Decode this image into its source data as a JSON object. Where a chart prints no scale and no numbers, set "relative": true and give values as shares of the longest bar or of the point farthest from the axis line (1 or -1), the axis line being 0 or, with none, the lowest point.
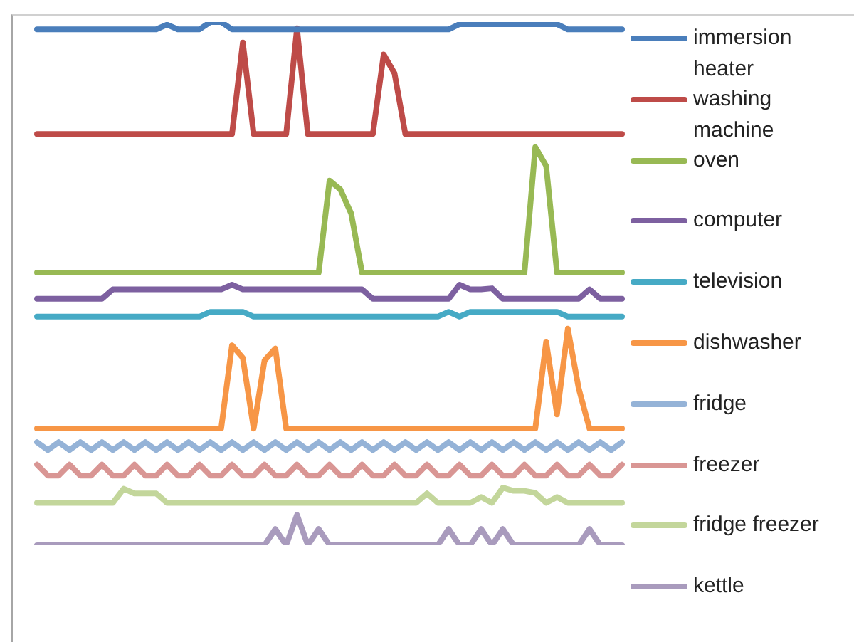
{
  "chart_data": {
    "type": "line",
    "relative": true,
    "legend": "right",
    "marker": "none",
    "line_style": "solid",
    "categories": [
      null,
      null,
      null,
      null,
      null,
      null,
      null,
      null,
      null,
      null,
      null,
      null,
      null,
      null,
      null,
      null,
      null,
      null,
      null,
      null,
      null,
      null,
      null,
      null,
      null,
      null,
      null,
      null,
      null,
      null,
      null,
      null,
      null,
      null,
      null,
      null,
      null,
      null,
      null,
      null,
      null,
      null,
      null,
      null,
      null,
      null,
      null,
      null,
      null,
      null,
      null,
      null,
      null,
      null,
      null
    ],
    "series": [
      {
        "name": "immersion heater",
        "color": "#4a7ebb",
        "values": [
          0.986,
          0.986,
          0.986,
          0.986,
          0.986,
          0.986,
          0.986,
          0.986,
          0.986,
          0.986,
          0.986,
          0.986,
          0.995,
          0.986,
          0.986,
          0.986,
          1,
          1,
          0.986,
          0.986,
          0.986,
          0.986,
          0.986,
          0.986,
          0.986,
          0.986,
          0.986,
          0.986,
          0.986,
          0.986,
          0.986,
          0.986,
          0.986,
          0.986,
          0.986,
          0.986,
          0.986,
          0.986,
          0.986,
          0.996,
          0.996,
          0.996,
          0.996,
          0.996,
          0.996,
          0.996,
          0.996,
          0.996,
          0.996,
          0.986,
          0.986,
          0.986,
          0.986,
          0.986,
          0.986
        ]
      },
      {
        "name": "washing machine",
        "color": "#be4b48",
        "values": [
          0.786,
          0.786,
          0.786,
          0.786,
          0.786,
          0.786,
          0.786,
          0.786,
          0.786,
          0.786,
          0.786,
          0.786,
          0.786,
          0.786,
          0.786,
          0.786,
          0.786,
          0.786,
          0.786,
          0.961,
          0.786,
          0.786,
          0.786,
          0.786,
          0.988,
          0.786,
          0.786,
          0.786,
          0.786,
          0.786,
          0.786,
          0.786,
          0.938,
          0.902,
          0.786,
          0.786,
          0.786,
          0.786,
          0.786,
          0.786,
          0.786,
          0.786,
          0.786,
          0.786,
          0.786,
          0.786,
          0.786,
          0.786,
          0.786,
          0.786,
          0.786,
          0.786,
          0.786,
          0.786,
          0.786
        ]
      },
      {
        "name": "oven",
        "color": "#98b954",
        "values": [
          0.521,
          0.521,
          0.521,
          0.521,
          0.521,
          0.521,
          0.521,
          0.521,
          0.521,
          0.521,
          0.521,
          0.521,
          0.521,
          0.521,
          0.521,
          0.521,
          0.521,
          0.521,
          0.521,
          0.521,
          0.521,
          0.521,
          0.521,
          0.521,
          0.521,
          0.521,
          0.521,
          0.697,
          0.68,
          0.634,
          0.521,
          0.521,
          0.521,
          0.521,
          0.521,
          0.521,
          0.521,
          0.521,
          0.521,
          0.521,
          0.521,
          0.521,
          0.521,
          0.521,
          0.521,
          0.521,
          0.761,
          0.725,
          0.521,
          0.521,
          0.521,
          0.521,
          0.521,
          0.521,
          0.521
        ]
      },
      {
        "name": "computer",
        "color": "#7d60a0",
        "values": [
          0.471,
          0.471,
          0.471,
          0.471,
          0.471,
          0.471,
          0.471,
          0.489,
          0.489,
          0.489,
          0.489,
          0.489,
          0.489,
          0.489,
          0.489,
          0.489,
          0.489,
          0.489,
          0.498,
          0.489,
          0.489,
          0.489,
          0.489,
          0.489,
          0.489,
          0.489,
          0.489,
          0.489,
          0.489,
          0.489,
          0.489,
          0.471,
          0.471,
          0.471,
          0.471,
          0.471,
          0.471,
          0.471,
          0.471,
          0.498,
          0.489,
          0.489,
          0.491,
          0.471,
          0.471,
          0.471,
          0.471,
          0.471,
          0.471,
          0.471,
          0.471,
          0.489,
          0.471,
          0.471,
          0.471
        ]
      },
      {
        "name": "television",
        "color": "#46aac5",
        "values": [
          0.437,
          0.437,
          0.437,
          0.437,
          0.437,
          0.437,
          0.437,
          0.437,
          0.437,
          0.437,
          0.437,
          0.437,
          0.437,
          0.437,
          0.437,
          0.437,
          0.446,
          0.446,
          0.446,
          0.446,
          0.437,
          0.437,
          0.437,
          0.437,
          0.437,
          0.437,
          0.437,
          0.437,
          0.437,
          0.437,
          0.437,
          0.437,
          0.437,
          0.437,
          0.437,
          0.437,
          0.437,
          0.437,
          0.446,
          0.437,
          0.446,
          0.446,
          0.446,
          0.446,
          0.446,
          0.446,
          0.446,
          0.446,
          0.446,
          0.437,
          0.437,
          0.437,
          0.437,
          0.437,
          0.437
        ]
      },
      {
        "name": "dishwasher",
        "color": "#f79646",
        "values": [
          0.223,
          0.223,
          0.223,
          0.223,
          0.223,
          0.223,
          0.223,
          0.223,
          0.223,
          0.223,
          0.223,
          0.223,
          0.223,
          0.223,
          0.223,
          0.223,
          0.223,
          0.223,
          0.382,
          0.358,
          0.223,
          0.353,
          0.376,
          0.223,
          0.223,
          0.223,
          0.223,
          0.223,
          0.223,
          0.223,
          0.223,
          0.223,
          0.223,
          0.223,
          0.223,
          0.223,
          0.223,
          0.223,
          0.223,
          0.223,
          0.223,
          0.223,
          0.223,
          0.223,
          0.223,
          0.223,
          0.223,
          0.389,
          0.25,
          0.414,
          0.3,
          0.223,
          0.223,
          0.223,
          0.223
        ]
      },
      {
        "name": "fridge",
        "color": "#95b3d7",
        "values": [
          0.197,
          0.182,
          0.197,
          0.182,
          0.197,
          0.182,
          0.197,
          0.182,
          0.197,
          0.182,
          0.197,
          0.182,
          0.197,
          0.182,
          0.197,
          0.182,
          0.197,
          0.182,
          0.197,
          0.182,
          0.197,
          0.182,
          0.197,
          0.182,
          0.197,
          0.182,
          0.197,
          0.182,
          0.197,
          0.182,
          0.197,
          0.182,
          0.197,
          0.182,
          0.197,
          0.182,
          0.197,
          0.182,
          0.197,
          0.182,
          0.197,
          0.182,
          0.197,
          0.182,
          0.197,
          0.182,
          0.197,
          0.182,
          0.197,
          0.182,
          0.197,
          0.182,
          0.197,
          0.182,
          0.197
        ]
      },
      {
        "name": "freezer",
        "color": "#d99694",
        "values": [
          0.154,
          0.133,
          0.133,
          0.154,
          0.133,
          0.133,
          0.154,
          0.133,
          0.133,
          0.154,
          0.133,
          0.133,
          0.154,
          0.133,
          0.133,
          0.154,
          0.133,
          0.133,
          0.154,
          0.133,
          0.133,
          0.154,
          0.133,
          0.133,
          0.154,
          0.133,
          0.133,
          0.154,
          0.133,
          0.133,
          0.154,
          0.133,
          0.133,
          0.154,
          0.133,
          0.133,
          0.154,
          0.133,
          0.133,
          0.154,
          0.133,
          0.133,
          0.154,
          0.133,
          0.133,
          0.154,
          0.133,
          0.133,
          0.154,
          0.133,
          0.133,
          0.154,
          0.133,
          0.133,
          0.154
        ]
      },
      {
        "name": "fridge freezer",
        "color": "#c3d69b",
        "values": [
          0.081,
          0.081,
          0.081,
          0.081,
          0.081,
          0.081,
          0.081,
          0.081,
          0.108,
          0.099,
          0.099,
          0.099,
          0.081,
          0.081,
          0.081,
          0.081,
          0.081,
          0.081,
          0.081,
          0.081,
          0.081,
          0.081,
          0.081,
          0.081,
          0.081,
          0.081,
          0.081,
          0.081,
          0.081,
          0.081,
          0.081,
          0.081,
          0.081,
          0.081,
          0.081,
          0.081,
          0.099,
          0.081,
          0.081,
          0.081,
          0.081,
          0.092,
          0.081,
          0.11,
          0.104,
          0.104,
          0.1,
          0.081,
          0.092,
          0.081,
          0.081,
          0.081,
          0.081,
          0.081,
          0.081
        ]
      },
      {
        "name": "kettle",
        "color": "#a99bbd",
        "values": [
          0,
          0,
          0,
          0,
          0,
          0,
          0,
          0,
          0,
          0,
          0,
          0,
          0,
          0,
          0,
          0,
          0,
          0,
          0,
          0,
          0,
          0,
          0.031,
          0,
          0.058,
          0,
          0.031,
          0,
          0,
          0,
          0,
          0,
          0,
          0,
          0,
          0,
          0,
          0,
          0.031,
          0,
          0,
          0.031,
          0,
          0.031,
          0,
          0,
          0,
          0,
          0,
          0,
          0,
          0.031,
          0,
          0,
          0
        ]
      }
    ]
  }
}
